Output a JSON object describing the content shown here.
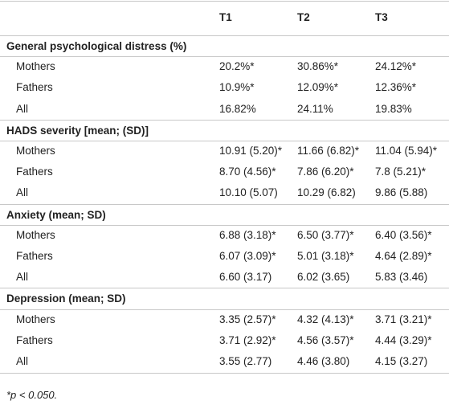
{
  "table": {
    "columns": [
      "T1",
      "T2",
      "T3"
    ],
    "sections": [
      {
        "title": "General psychological distress (%)",
        "rows": [
          {
            "label": "Mothers",
            "values": [
              "20.2%*",
              "30.86%*",
              "24.12%*"
            ]
          },
          {
            "label": "Fathers",
            "values": [
              "10.9%*",
              "12.09%*",
              "12.36%*"
            ]
          },
          {
            "label": "All",
            "values": [
              "16.82%",
              "24.11%",
              "19.83%"
            ]
          }
        ]
      },
      {
        "title": "HADS severity [mean; (SD)]",
        "rows": [
          {
            "label": "Mothers",
            "values": [
              "10.91 (5.20)*",
              "11.66 (6.82)*",
              "11.04 (5.94)*"
            ]
          },
          {
            "label": "Fathers",
            "values": [
              "8.70 (4.56)*",
              "7.86 (6.20)*",
              "7.8 (5.21)*"
            ]
          },
          {
            "label": "All",
            "values": [
              "10.10 (5.07)",
              "10.29 (6.82)",
              "9.86 (5.88)"
            ]
          }
        ]
      },
      {
        "title": "Anxiety (mean; SD)",
        "rows": [
          {
            "label": "Mothers",
            "values": [
              "6.88 (3.18)*",
              "6.50 (3.77)*",
              "6.40 (3.56)*"
            ]
          },
          {
            "label": "Fathers",
            "values": [
              "6.07 (3.09)*",
              "5.01 (3.18)*",
              "4.64 (2.89)*"
            ]
          },
          {
            "label": "All",
            "values": [
              "6.60 (3.17)",
              "6.02 (3.65)",
              "5.83 (3.46)"
            ]
          }
        ]
      },
      {
        "title": "Depression (mean; SD)",
        "rows": [
          {
            "label": "Mothers",
            "values": [
              "3.35 (2.57)*",
              "4.32 (4.13)*",
              "3.71 (3.21)*"
            ]
          },
          {
            "label": "Fathers",
            "values": [
              "3.71 (2.92)*",
              "4.56 (3.57)*",
              "4.44 (3.29)*"
            ]
          },
          {
            "label": "All",
            "values": [
              "3.55 (2.77)",
              "4.46 (3.80)",
              "4.15 (3.27)"
            ]
          }
        ]
      }
    ],
    "footnote": "*p < 0.050."
  }
}
